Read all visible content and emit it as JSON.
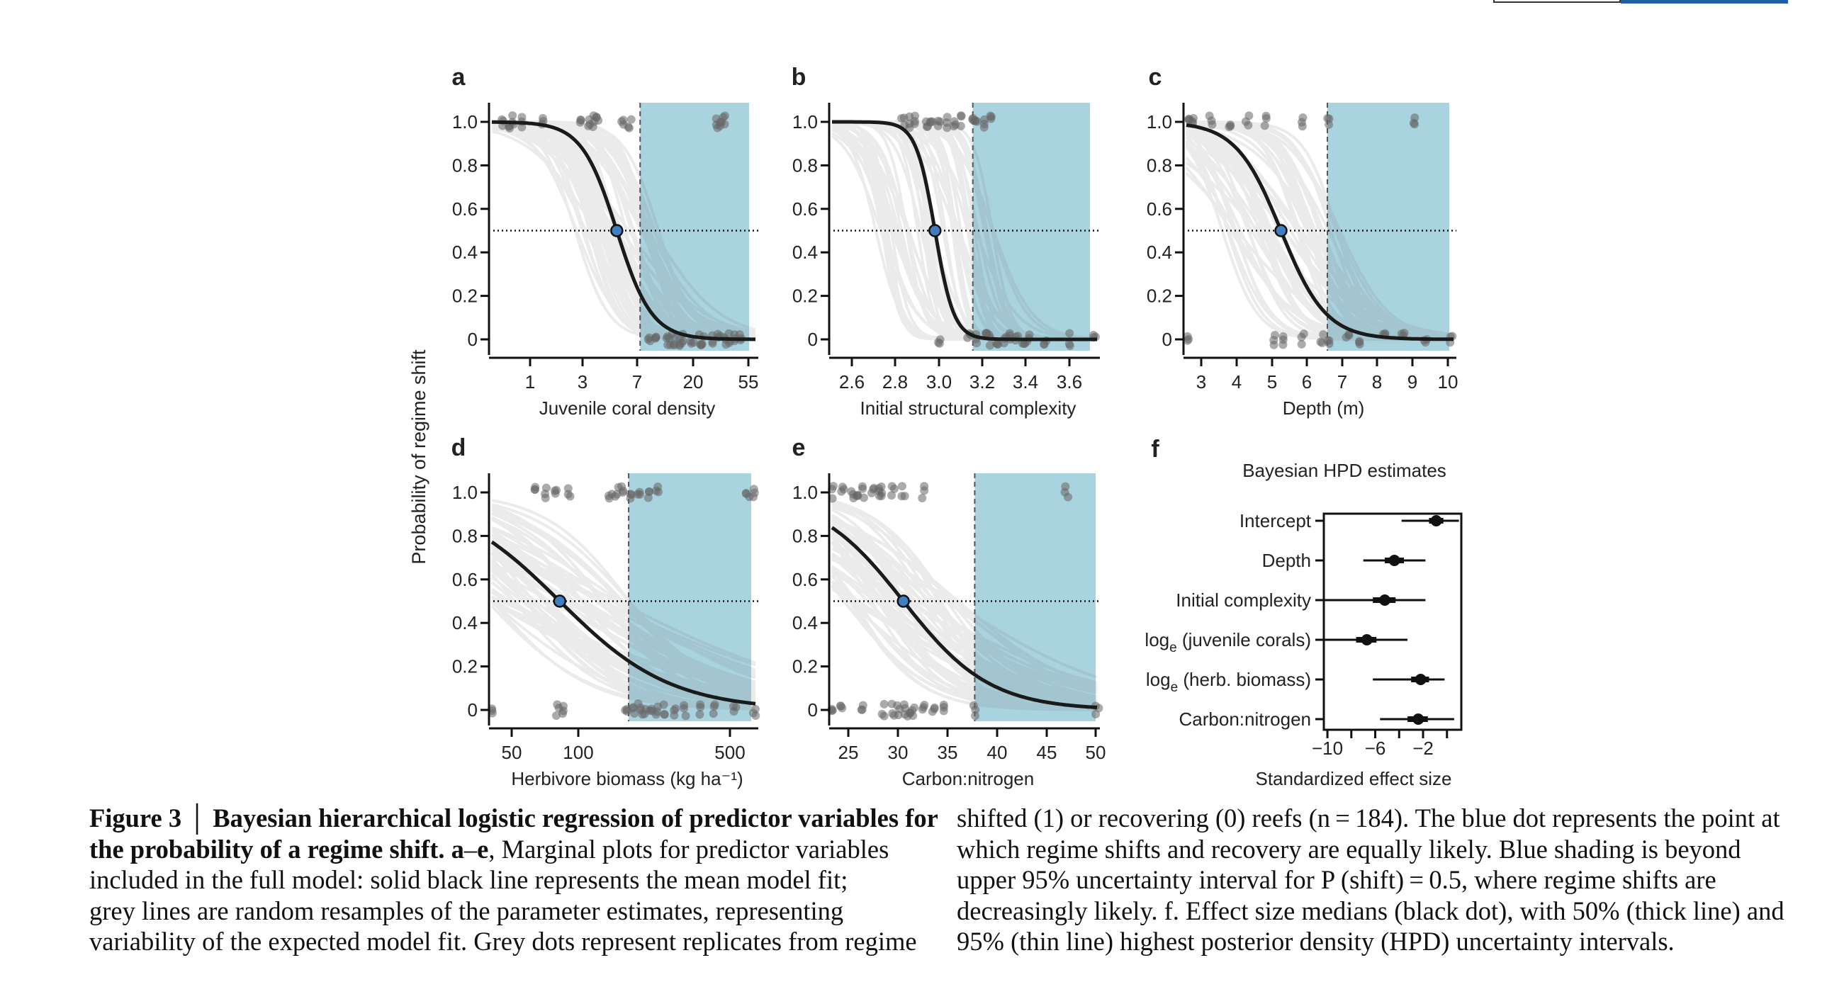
{
  "chart_data": [
    {
      "panel": "a",
      "type": "line",
      "xlabel": "Juvenile coral density",
      "xticks": [
        "1",
        "3",
        "7",
        "20",
        "55"
      ],
      "x_scale": "log",
      "yticks": [
        "0",
        "0.2",
        "0.4",
        "0.6",
        "0.8",
        "1.0"
      ],
      "ylim": [
        0,
        1
      ],
      "mean_fit": {
        "x50": 4.3,
        "slope": 3.0,
        "xmin": 0.4,
        "xmax": 60
      },
      "blue_point": {
        "x": 4.3,
        "y": 0.5
      },
      "shaded_from_x": 6.7,
      "points_y1_x": [
        0.5,
        0.55,
        0.6,
        0.7,
        1.05,
        2.2,
        2.5,
        2.8,
        3.0,
        4.8,
        5.5,
        29,
        31,
        33
      ],
      "points_y0_x": [
        8,
        9,
        11,
        12,
        13,
        14,
        15,
        18,
        21,
        22,
        26,
        30,
        34,
        37,
        40,
        45
      ]
    },
    {
      "panel": "b",
      "type": "line",
      "xlabel": "Initial structural complexity",
      "xticks": [
        "2.6",
        "2.8",
        "3.0",
        "3.2",
        "3.4",
        "3.6"
      ],
      "x_scale": "linear",
      "yticks": [
        "0",
        "0.2",
        "0.4",
        "0.6",
        "0.8",
        "1.0"
      ],
      "ylim": [
        0,
        1
      ],
      "mean_fit": {
        "x50": 2.985,
        "slope": -25,
        "xmin": 2.55,
        "xmax": 3.67
      },
      "blue_point": {
        "x": 2.985,
        "y": 0.5
      },
      "shaded_from_x": 3.145,
      "points_y1_x": [
        2.85,
        2.88,
        2.9,
        2.95,
        2.97,
        3.0,
        3.03,
        3.07,
        3.1,
        3.14,
        3.16,
        3.19,
        3.22
      ],
      "points_y0_x": [
        3.0,
        3.13,
        3.16,
        3.2,
        3.22,
        3.25,
        3.28,
        3.3,
        3.33,
        3.36,
        3.38,
        3.45,
        3.55,
        3.66
      ]
    },
    {
      "panel": "c",
      "type": "line",
      "xlabel": "Depth (m)",
      "xticks": [
        "3",
        "4",
        "5",
        "6",
        "7",
        "8",
        "9",
        "10"
      ],
      "x_scale": "linear",
      "yticks": [
        "0",
        "0.2",
        "0.4",
        "0.6",
        "0.8",
        "1.0"
      ],
      "ylim": [
        0,
        1
      ],
      "mean_fit": {
        "x50": 5.4,
        "slope": -1.65,
        "xmin": 2.85,
        "xmax": 10.05
      },
      "blue_point": {
        "x": 5.4,
        "y": 0.5
      },
      "shaded_from_x": 6.65,
      "points_y1_x": [
        2.9,
        3.0,
        3.5,
        4.0,
        4.5,
        5.0,
        6.0,
        6.7,
        9.0
      ],
      "points_y0_x": [
        2.9,
        5.2,
        5.5,
        6.0,
        6.5,
        6.7,
        7.2,
        7.5,
        8.2,
        8.7,
        9.3,
        10.0
      ]
    },
    {
      "panel": "d",
      "type": "line",
      "xlabel": "Herbivore biomass (kg ha⁻¹)",
      "xticks": [
        "50",
        "100",
        "500"
      ],
      "x_scale": "log",
      "yticks": [
        "0",
        "0.2",
        "0.4",
        "0.6",
        "0.8",
        "1.0"
      ],
      "ylim": [
        0,
        1
      ],
      "mean_fit": {
        "x50": 82,
        "slope": -1.7,
        "xmin": 40,
        "xmax": 650
      },
      "blue_point": {
        "x": 82,
        "y": 0.5
      },
      "shaded_from_x": 170,
      "points_y1_x": [
        63,
        70,
        78,
        90,
        140,
        150,
        160,
        175,
        190,
        210,
        230,
        600,
        640
      ],
      "points_y0_x": [
        40,
        80,
        85,
        165,
        180,
        190,
        200,
        215,
        230,
        250,
        280,
        310,
        360,
        420,
        520,
        640
      ]
    },
    {
      "panel": "e",
      "type": "line",
      "xlabel": "Carbon:nitrogen",
      "xticks": [
        "25",
        "30",
        "35",
        "40",
        "45",
        "50"
      ],
      "x_scale": "linear",
      "yticks": [
        "0",
        "0.2",
        "0.4",
        "0.6",
        "0.8",
        "1.0"
      ],
      "ylim": [
        0,
        1
      ],
      "mean_fit": {
        "x50": 31,
        "slope": -0.235,
        "xmin": 24,
        "xmax": 50
      },
      "blue_point": {
        "x": 31,
        "y": 0.5
      },
      "shaded_from_x": 38,
      "points_y1_x": [
        24,
        25,
        26,
        26.5,
        27,
        28,
        28.5,
        29,
        30,
        31,
        33,
        47
      ],
      "points_y0_x": [
        24,
        25,
        27,
        29,
        30,
        30.5,
        31,
        31.5,
        32,
        33,
        34,
        35,
        38,
        50
      ]
    },
    {
      "panel": "f",
      "type": "interval",
      "title": "Bayesian HPD estimates",
      "xlabel": "Standardized effect size",
      "xticks": [
        "−10",
        "−6",
        "−2"
      ],
      "xlim": [
        -10.3,
        1.2
      ],
      "categories": [
        "Intercept",
        "Depth",
        "Initial complexity",
        "log_e (juvenile corals)",
        "log_e (herb. biomass)",
        "Carbon:nitrogen"
      ],
      "medians": [
        -0.9,
        -4.4,
        -5.2,
        -6.7,
        -2.2,
        -2.4
      ],
      "hpd50": [
        [
          -1.5,
          -0.3
        ],
        [
          -5.2,
          -3.6
        ],
        [
          -6.2,
          -4.3
        ],
        [
          -7.6,
          -5.9
        ],
        [
          -3.0,
          -1.5
        ],
        [
          -3.3,
          -1.6
        ]
      ],
      "hpd95": [
        [
          -3.8,
          1.0
        ],
        [
          -7.0,
          -1.8
        ],
        [
          -10.3,
          -1.8
        ],
        [
          -10.3,
          -3.3
        ],
        [
          -6.2,
          -0.2
        ],
        [
          -5.6,
          0.6
        ]
      ]
    }
  ],
  "panel_letters": [
    "a",
    "b",
    "c",
    "d",
    "e",
    "f"
  ],
  "y_axis_label": "Probability of regime shift",
  "caption": {
    "left_lines": [
      {
        "bold": "Figure 3",
        "sep": "│",
        "rest_bold": "Bayesian hierarchical logistic regression of predictor variables for"
      },
      {
        "bold": "the probability of a regime shift.",
        "bold2": "a",
        "rest": "–",
        "bold3": "e",
        "rest2": ", Marginal plots for predictor variables"
      },
      {
        "text": "included in the full model: solid black line represents the mean model fit;"
      },
      {
        "text": "grey lines are random resamples of the parameter estimates, representing"
      },
      {
        "text": "variability of the expected model fit. Grey dots represent replicates from regime"
      }
    ],
    "right_lines": [
      "shifted (1) or recovering (0) reefs (n = 184). The blue dot represents the point at",
      "which regime shifts and recovery are equally likely. Blue shading is beyond",
      "upper 95% uncertainty interval for P (shift) = 0.5, where regime shifts are",
      "decreasingly likely. f. Effect size medians (black dot), with 50% (thick line) and",
      "95% (thin line) highest posterior density (HPD) uncertainty intervals."
    ]
  },
  "colors": {
    "shade": "#aad3e0",
    "blue_point": "#3f7fc0",
    "mean_line": "#1a1a1a",
    "sample_lines": "#9a9a9a",
    "points": "#666666",
    "bar_accent": "#1f5fa8"
  }
}
